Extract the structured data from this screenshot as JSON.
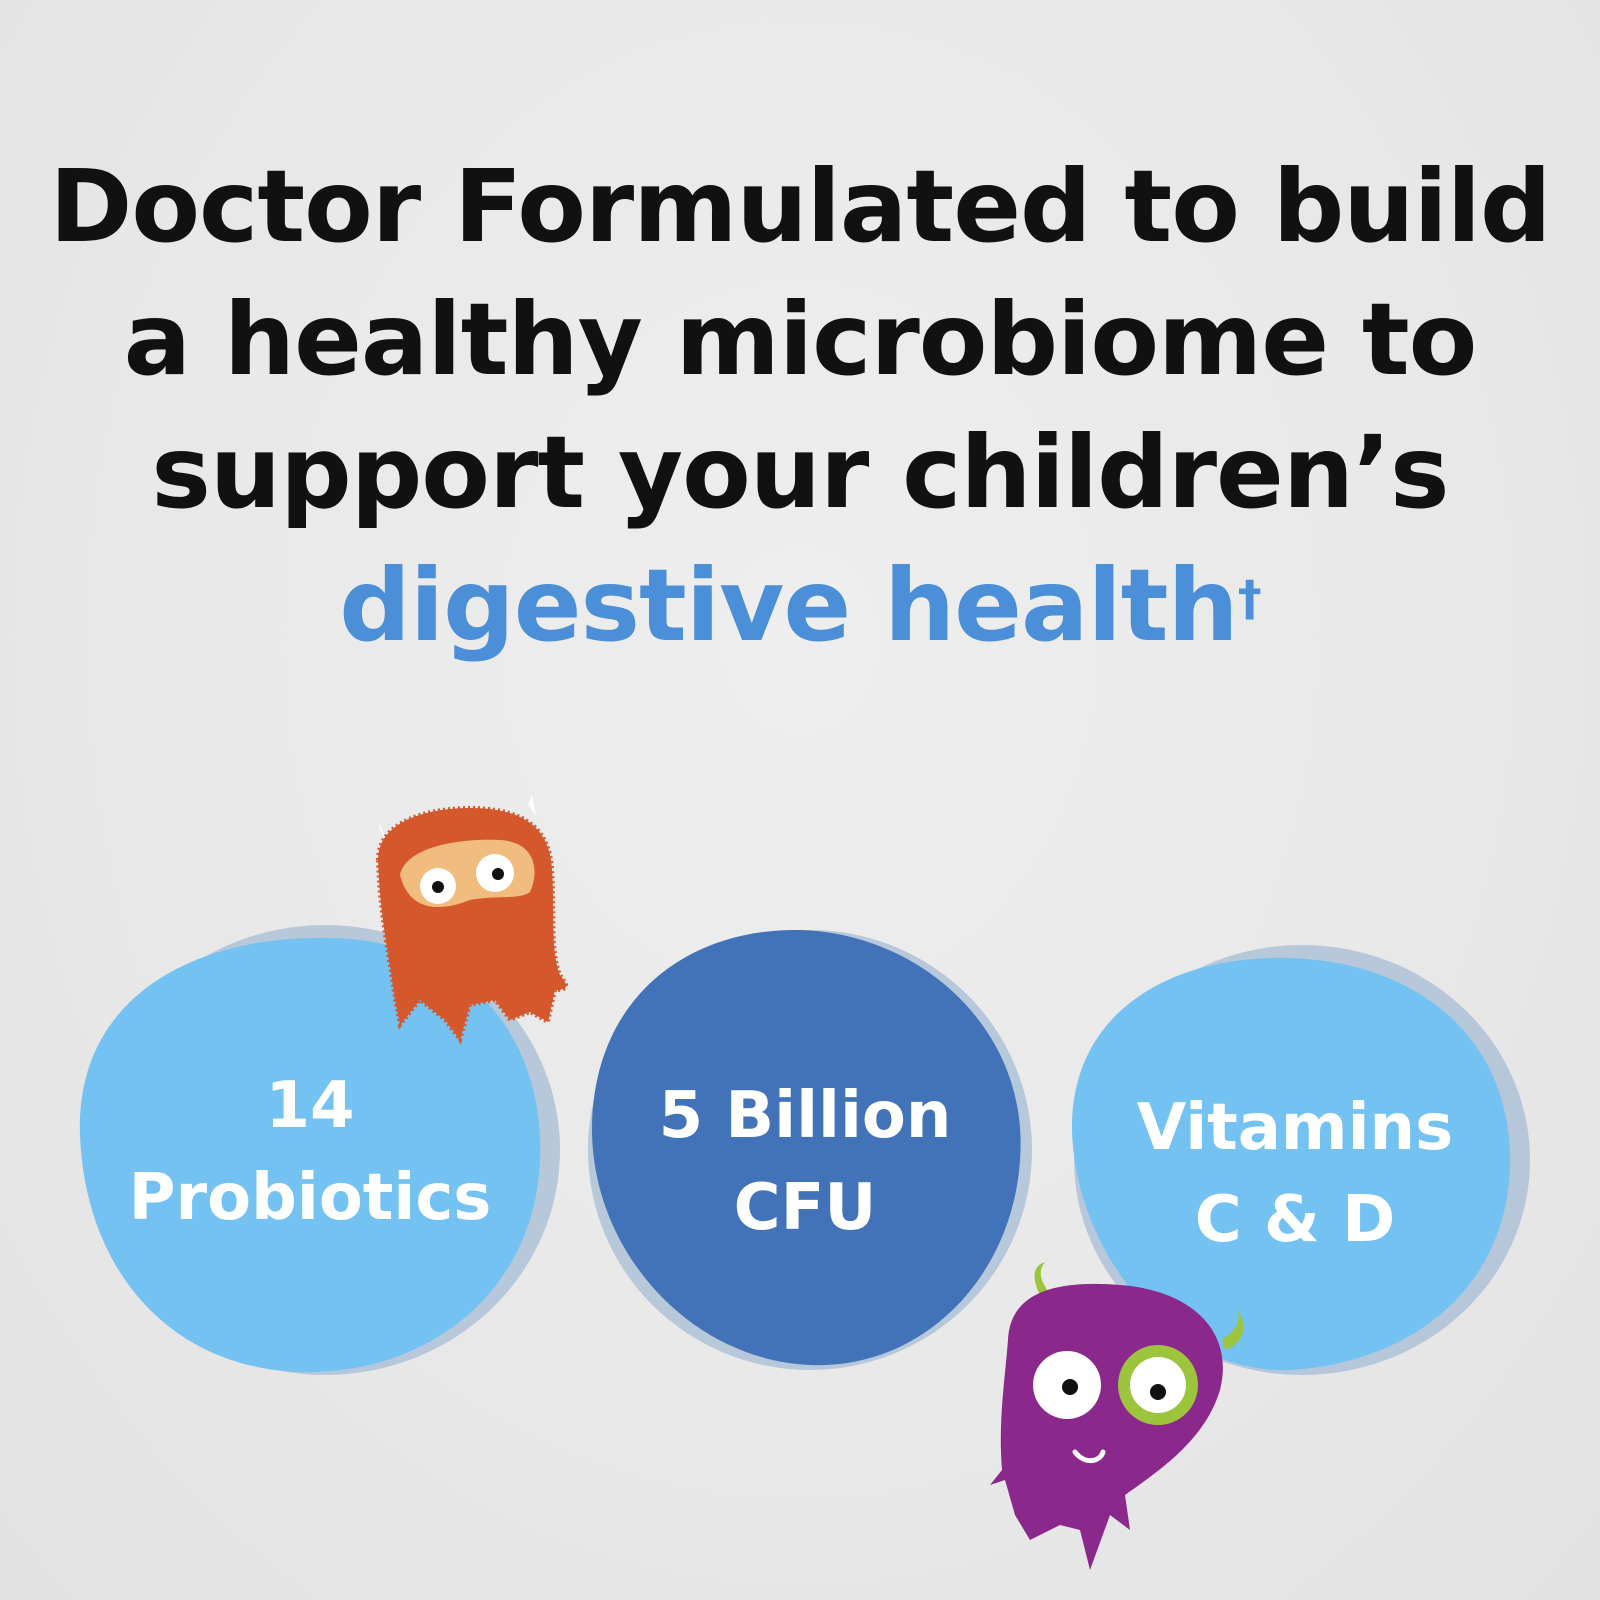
{
  "headline": {
    "line1": "Doctor Formulated to build",
    "line2": "a healthy microbiome to",
    "line3": "support your children’s",
    "accent": "digestive health",
    "dagger": "†"
  },
  "badges": [
    {
      "line1": "14",
      "line2": "Probiotics",
      "color": "#74c2f2"
    },
    {
      "line1": "5 Billion",
      "line2": "CFU",
      "color": "#4272b8"
    },
    {
      "line1": "Vitamins",
      "line2": "C & D",
      "color": "#74c2f2"
    }
  ],
  "colors": {
    "accent": "#4a8fd8",
    "orange_monster": "#d4582c",
    "purple_monster": "#8b288c",
    "green_accent": "#9cc43c"
  }
}
